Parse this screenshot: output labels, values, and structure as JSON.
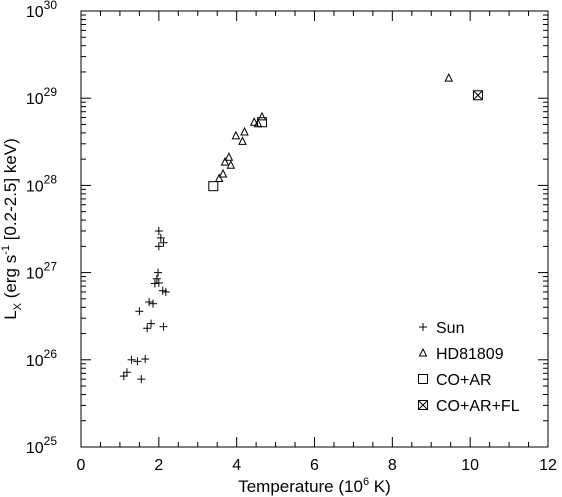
{
  "chart_data": {
    "type": "scatter",
    "title": "",
    "xlabel": {
      "prefix": "Temperature (10",
      "sup": "6",
      "suffix": " K)"
    },
    "ylabel": {
      "prefix": "L",
      "sub": "X",
      "mid": " (erg s",
      "sup": "-1",
      "suffix": " [0.2-2.5] keV)"
    },
    "xlim": [
      0,
      12
    ],
    "ylim": [
      1e+25,
      1e+30
    ],
    "yscale": "log",
    "x_ticks": [
      0,
      2,
      4,
      6,
      8,
      10,
      12
    ],
    "y_ticks": [
      {
        "base": "10",
        "exp": "25",
        "value": 1e+25
      },
      {
        "base": "10",
        "exp": "26",
        "value": 1e+26
      },
      {
        "base": "10",
        "exp": "27",
        "value": 1e+27
      },
      {
        "base": "10",
        "exp": "28",
        "value": 1e+28
      },
      {
        "base": "10",
        "exp": "29",
        "value": 1e+29
      },
      {
        "base": "10",
        "exp": "30",
        "value": 1e+30
      }
    ],
    "grid": false,
    "legend_position": "bottom-right",
    "series": [
      {
        "name": "Sun",
        "marker": "plus",
        "points": [
          [
            1.1,
            6.5e+25
          ],
          [
            1.18,
            7.2e+25
          ],
          [
            1.3,
            1e+26
          ],
          [
            1.45,
            9.6e+25
          ],
          [
            1.55,
            6e+25
          ],
          [
            1.65,
            1.02e+26
          ],
          [
            1.5,
            3.6e+26
          ],
          [
            1.7,
            2.3e+26
          ],
          [
            1.8,
            2.6e+26
          ],
          [
            1.75,
            4.6e+26
          ],
          [
            1.85,
            4.4e+26
          ],
          [
            1.9,
            7.5e+26
          ],
          [
            2.0,
            7.6e+26
          ],
          [
            1.98,
            1e+27
          ],
          [
            1.95,
            8.5e+26
          ],
          [
            2.1,
            6.2e+26
          ],
          [
            2.18,
            6e+26
          ],
          [
            2.12,
            2.4e+26
          ],
          [
            2.0,
            3e+27
          ],
          [
            2.05,
            2.5e+27
          ],
          [
            2.0,
            2e+27
          ],
          [
            2.12,
            2.2e+27
          ]
        ]
      },
      {
        "name": "HD81809",
        "marker": "triangle",
        "points": [
          [
            3.55,
            1.2e+28
          ],
          [
            3.65,
            1.35e+28
          ],
          [
            3.7,
            1.85e+28
          ],
          [
            3.8,
            2.1e+28
          ],
          [
            3.85,
            1.7e+28
          ],
          [
            3.98,
            3.7e+28
          ],
          [
            4.15,
            3.2e+28
          ],
          [
            4.2,
            4.1e+28
          ],
          [
            4.45,
            5.3e+28
          ],
          [
            4.55,
            5.1e+28
          ],
          [
            4.65,
            6.1e+28
          ],
          [
            9.45,
            1.7e+29
          ]
        ]
      },
      {
        "name": "CO+AR",
        "marker": "square",
        "points": [
          [
            3.4,
            9.8e+27
          ],
          [
            4.65,
            5.3e+28
          ]
        ]
      },
      {
        "name": "CO+AR+FL",
        "marker": "square-x",
        "points": [
          [
            10.2,
            1.08e+29
          ]
        ]
      }
    ]
  }
}
